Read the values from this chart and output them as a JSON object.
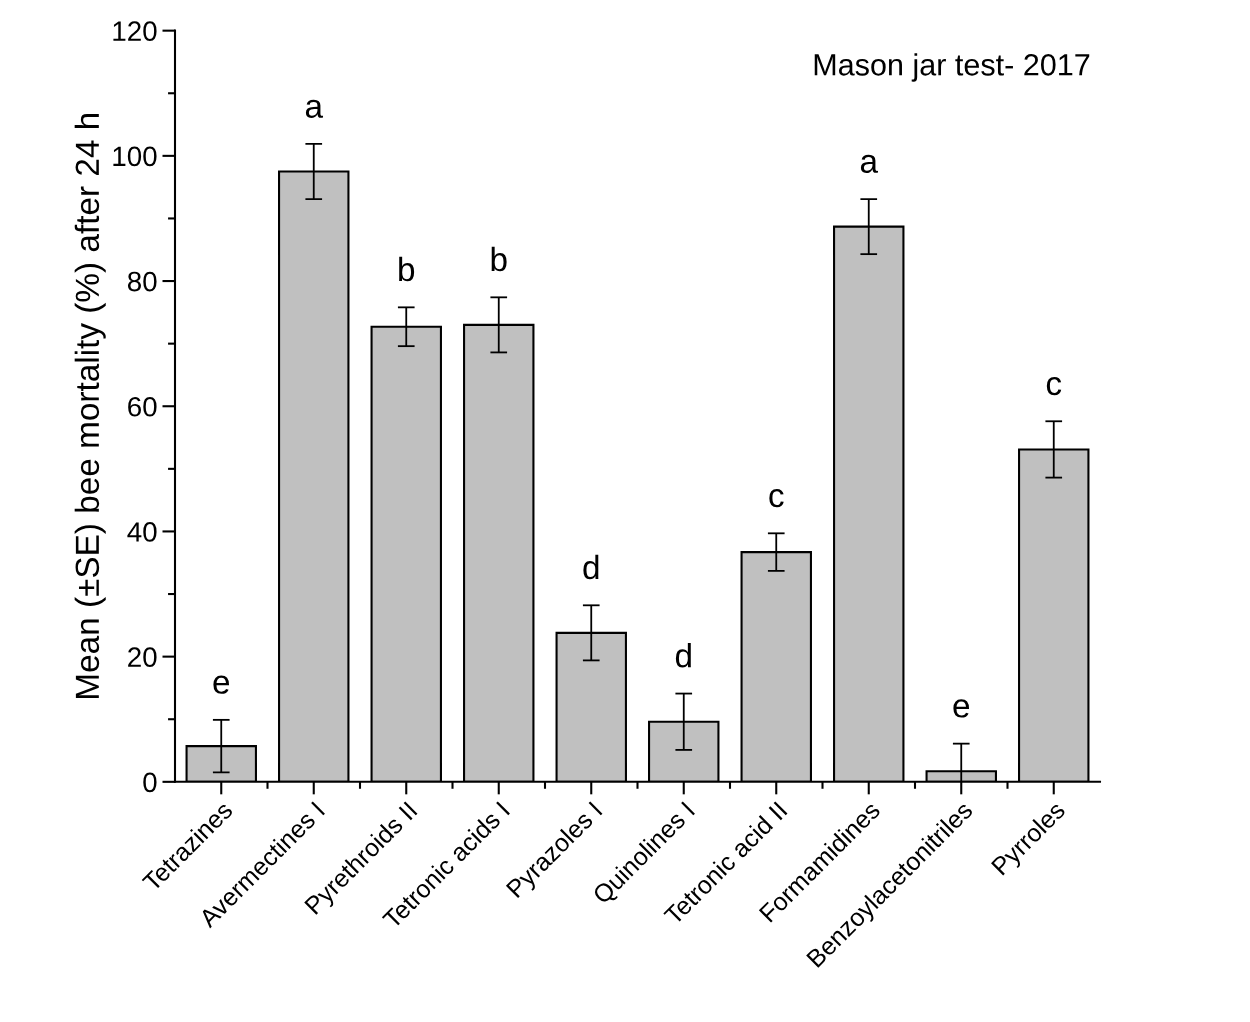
{
  "chart_data": {
    "type": "bar",
    "categories": [
      "Tetrazines",
      "Avermectines I",
      "Pyrethroids II",
      "Tetronic acids I",
      "Pyrazoles I",
      "Quinolines I",
      "Tetronic acid II",
      "Formamidines",
      "Benzoylacetonitriles",
      "Pyrroles"
    ],
    "values": [
      5.7,
      97.5,
      72.7,
      73.0,
      23.8,
      9.6,
      36.7,
      88.7,
      1.7,
      53.1
    ],
    "errors": [
      4.2,
      4.4,
      3.1,
      4.4,
      4.4,
      4.5,
      3.0,
      4.4,
      4.4,
      4.5
    ],
    "color": "#c0c0c0",
    "ylabel": "Mean (±SE) bee mortality (%) after 24 h",
    "ylim": [
      0,
      120
    ],
    "yticks": [
      0,
      20,
      40,
      60,
      80,
      100,
      120
    ],
    "grid": false,
    "legend": false,
    "annotations": [
      "Mason jar test- 2017",
      "e",
      "a",
      "b",
      "b",
      "d",
      "d",
      "c",
      "a",
      "e",
      "c"
    ]
  }
}
